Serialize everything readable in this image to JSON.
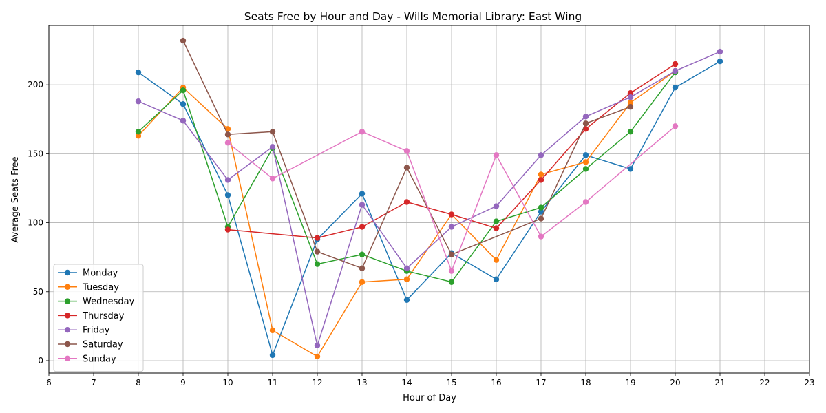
{
  "chart_data": {
    "type": "line",
    "title": "Seats Free by Hour and Day - Wills Memorial Library: East Wing",
    "xlabel": "Hour of Day",
    "ylabel": "Average Seats Free",
    "xlim": [
      6,
      23
    ],
    "ylim": [
      -9,
      243
    ],
    "xticks": [
      6,
      7,
      8,
      9,
      10,
      11,
      12,
      13,
      14,
      15,
      16,
      17,
      18,
      19,
      20,
      21,
      22,
      23
    ],
    "yticks": [
      0,
      50,
      100,
      150,
      200
    ],
    "grid": true,
    "legend_position": "lower-left",
    "series": [
      {
        "name": "Monday",
        "color": "#1f77b4",
        "x": [
          8,
          9,
          10,
          11,
          12,
          13,
          14,
          15,
          16,
          17,
          18,
          19,
          20,
          21
        ],
        "values": [
          209,
          186,
          120,
          4,
          88,
          121,
          44,
          78,
          59,
          108,
          149,
          139,
          198,
          217
        ]
      },
      {
        "name": "Tuesday",
        "color": "#ff7f0e",
        "x": [
          8,
          9,
          10,
          11,
          12,
          13,
          14,
          15,
          16,
          17,
          18,
          19,
          20
        ],
        "values": [
          163,
          198,
          168,
          22,
          3,
          57,
          59,
          106,
          73,
          135,
          144,
          187,
          210
        ]
      },
      {
        "name": "Wednesday",
        "color": "#2ca02c",
        "x": [
          8,
          9,
          10,
          11,
          12,
          13,
          14,
          15,
          16,
          17,
          18,
          19,
          20
        ],
        "values": [
          166,
          196,
          97,
          154,
          70,
          77,
          65,
          57,
          101,
          111,
          139,
          166,
          209
        ]
      },
      {
        "name": "Thursday",
        "color": "#d62728",
        "x": [
          10,
          12,
          13,
          14,
          15,
          16,
          17,
          18,
          19,
          20
        ],
        "values": [
          95,
          89,
          97,
          115,
          106,
          96,
          131,
          168,
          194,
          215
        ]
      },
      {
        "name": "Friday",
        "color": "#9467bd",
        "x": [
          8,
          9,
          10,
          11,
          12,
          13,
          14,
          15,
          16,
          17,
          18,
          19,
          20,
          21
        ],
        "values": [
          188,
          174,
          131,
          155,
          11,
          113,
          67,
          97,
          112,
          149,
          177,
          191,
          210,
          224
        ]
      },
      {
        "name": "Saturday",
        "color": "#8c564b",
        "x": [
          9,
          10,
          11,
          12,
          13,
          14,
          15,
          17,
          18,
          19
        ],
        "values": [
          232,
          164,
          166,
          79,
          67,
          140,
          77,
          103,
          172,
          184
        ]
      },
      {
        "name": "Sunday",
        "color": "#e377c2",
        "x": [
          10,
          11,
          13,
          14,
          15,
          16,
          17,
          18,
          20
        ],
        "values": [
          158,
          132,
          166,
          152,
          65,
          149,
          90,
          115,
          170
        ]
      }
    ]
  }
}
